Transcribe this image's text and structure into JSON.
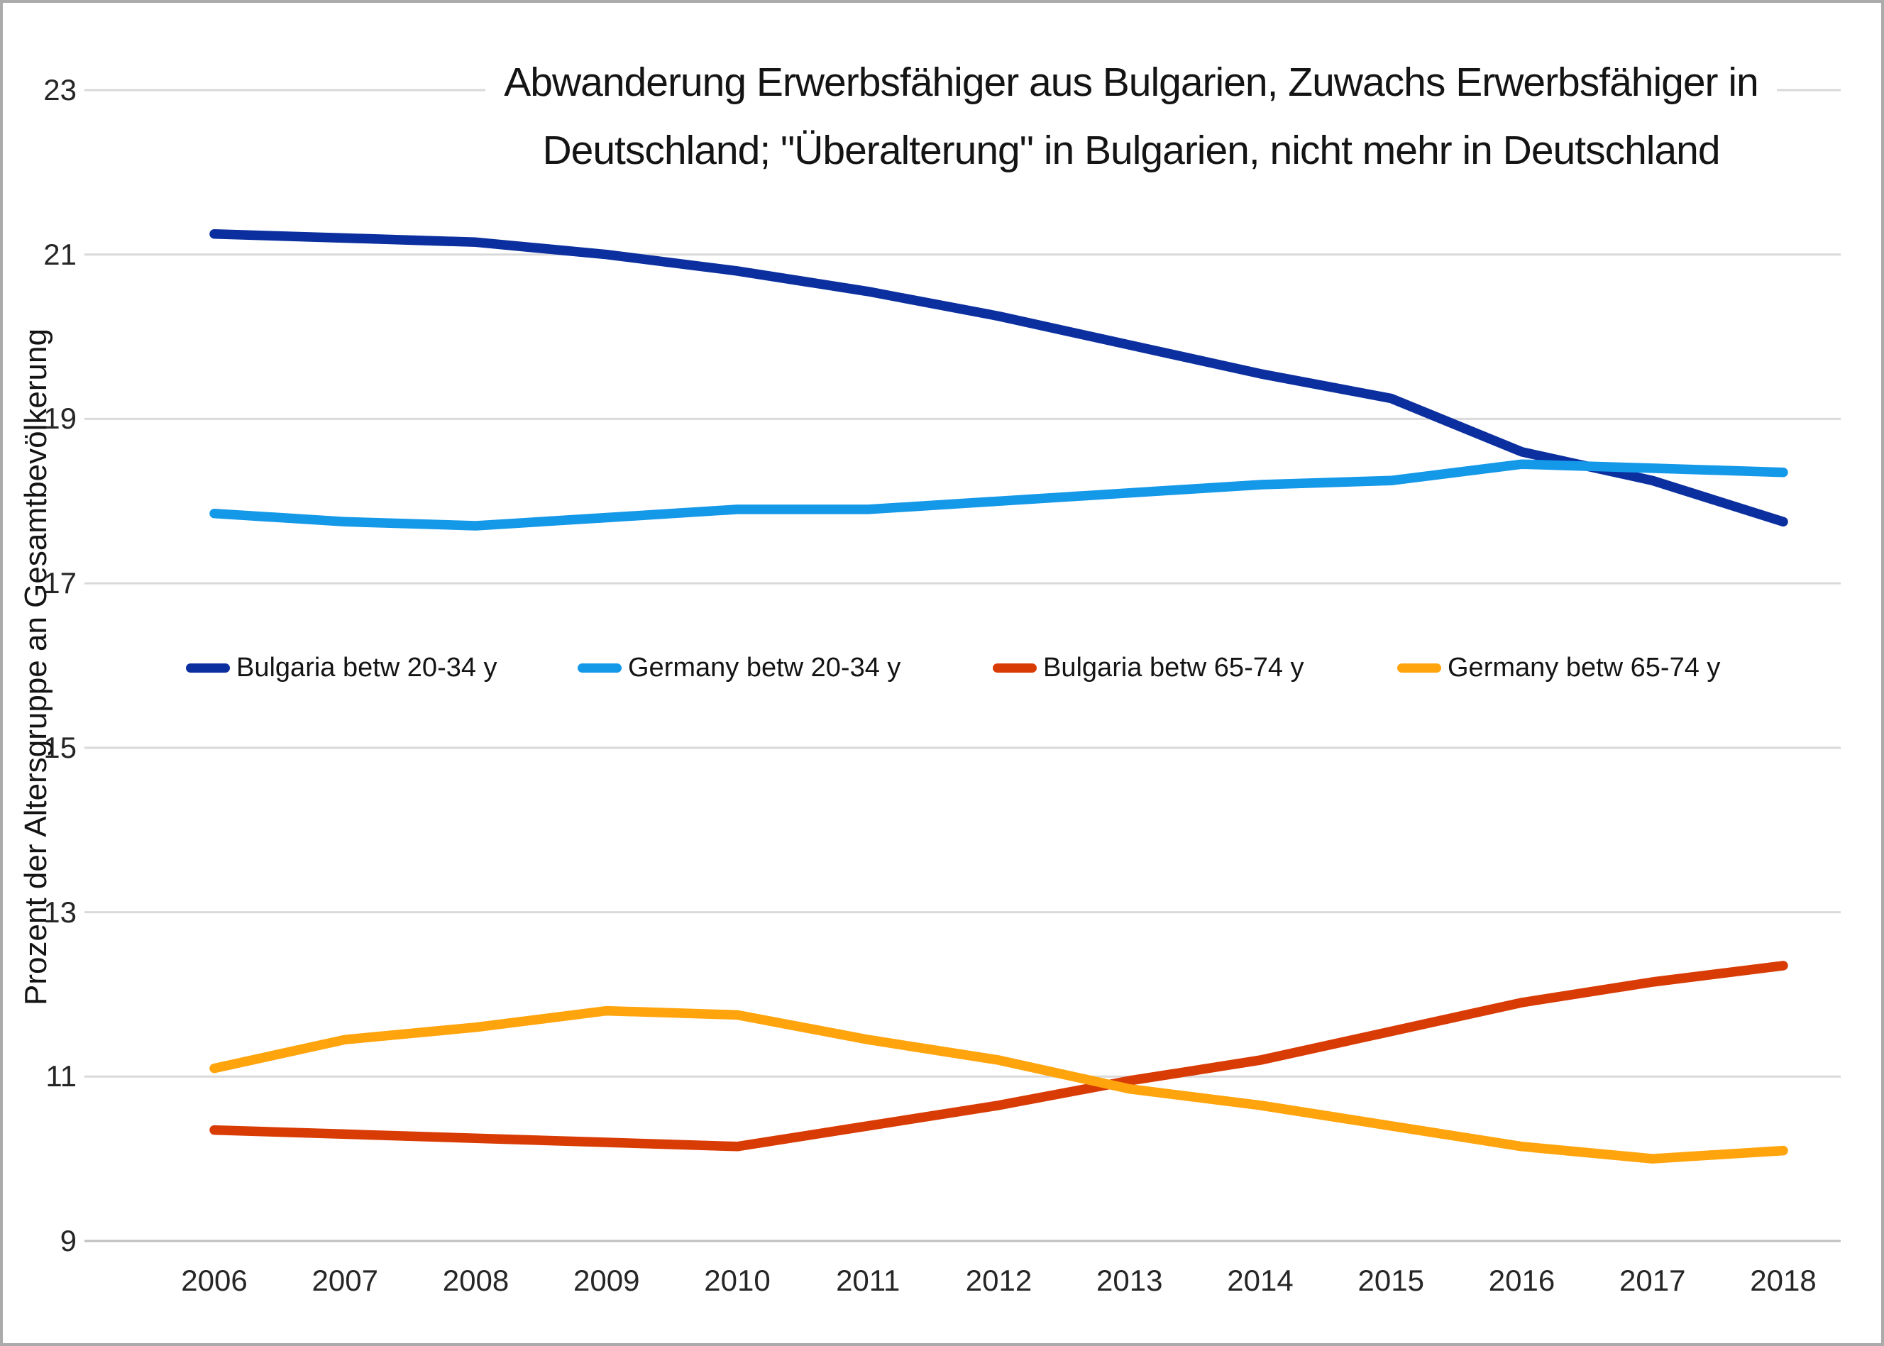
{
  "title": {
    "line1": "Abwanderung Erwerbsfähiger aus Bulgarien, Zuwachs Erwerbsfähiger in",
    "line2": "Deutschland; \"Überalterung\" in Bulgarien, nicht mehr in Deutschland"
  },
  "colors": {
    "gridline": "#D9D9D9",
    "axis_line": "#BFBFBF",
    "text": "#141414",
    "frame_border": "#ABABAB"
  },
  "chart_data": {
    "type": "line",
    "title": "Abwanderung Erwerbsfähiger aus Bulgarien, Zuwachs Erwerbsfähiger in Deutschland; \"Überalterung\" in Bulgarien, nicht mehr in Deutschland",
    "xlabel": "",
    "ylabel": "Prozent der Altersgruppe an Gesamtbevölkerung",
    "x": [
      2006,
      2007,
      2008,
      2009,
      2010,
      2011,
      2012,
      2013,
      2014,
      2015,
      2016,
      2017,
      2018
    ],
    "series": [
      {
        "name": "Bulgaria betw 20-34 y",
        "color": "#0B2F9F",
        "values": [
          21.25,
          21.2,
          21.15,
          21.0,
          20.8,
          20.55,
          20.25,
          19.9,
          19.55,
          19.25,
          18.6,
          18.25,
          17.75
        ]
      },
      {
        "name": "Germany betw 20-34 y",
        "color": "#1498E8",
        "values": [
          17.85,
          17.75,
          17.7,
          17.8,
          17.9,
          17.9,
          18.0,
          18.1,
          18.2,
          18.25,
          18.45,
          18.4,
          18.35
        ]
      },
      {
        "name": "Bulgaria betw 65-74 y",
        "color": "#D93B05",
        "values": [
          10.35,
          10.3,
          10.25,
          10.2,
          10.15,
          10.4,
          10.65,
          10.95,
          11.2,
          11.55,
          11.9,
          12.15,
          12.35
        ]
      },
      {
        "name": "Germany betw 65-74 y",
        "color": "#FFA40D",
        "values": [
          11.1,
          11.45,
          11.6,
          11.8,
          11.75,
          11.45,
          11.2,
          10.85,
          10.65,
          10.4,
          10.15,
          10.0,
          10.1
        ]
      }
    ],
    "ylim": [
      9,
      23
    ],
    "yticks": [
      9,
      11,
      13,
      15,
      17,
      19,
      21,
      23
    ],
    "grid": true,
    "legend_position": "inside-upper-area-horizontal"
  }
}
